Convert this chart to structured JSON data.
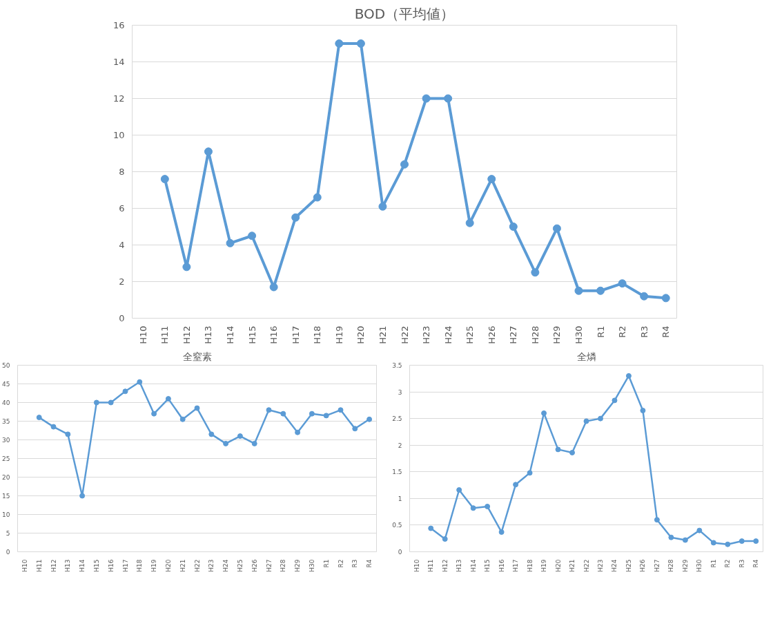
{
  "chart_data": [
    {
      "type": "line",
      "title": "BOD（平均値）",
      "categories": [
        "H10",
        "H11",
        "H12",
        "H13",
        "H14",
        "H15",
        "H16",
        "H17",
        "H18",
        "H19",
        "H20",
        "H21",
        "H22",
        "H23",
        "H24",
        "H25",
        "H26",
        "H27",
        "H28",
        "H29",
        "H30",
        "R1",
        "R2",
        "R3",
        "R4"
      ],
      "series": [
        {
          "color": "#5b9bd5",
          "values": [
            null,
            7.6,
            2.8,
            9.1,
            4.1,
            4.5,
            1.7,
            5.5,
            6.6,
            15,
            15,
            6.1,
            8.4,
            12,
            12,
            5.2,
            7.6,
            5.0,
            2.5,
            4.9,
            1.5,
            1.5,
            1.9,
            1.2,
            1.1
          ]
        }
      ],
      "ylim": [
        0,
        16
      ],
      "yticks": [
        0,
        2,
        4,
        6,
        8,
        10,
        12,
        14,
        16
      ],
      "grid": "y",
      "marker": "circle"
    },
    {
      "type": "line",
      "title": "全窒素",
      "categories": [
        "H10",
        "H11",
        "H12",
        "H13",
        "H14",
        "H15",
        "H16",
        "H17",
        "H18",
        "H19",
        "H20",
        "H21",
        "H22",
        "H23",
        "H24",
        "H25",
        "H26",
        "H27",
        "H28",
        "H29",
        "H30",
        "R1",
        "R2",
        "R3",
        "R4"
      ],
      "series": [
        {
          "color": "#5b9bd5",
          "values": [
            null,
            36,
            33.5,
            31.5,
            15,
            40,
            40,
            43,
            45.5,
            37,
            41,
            35.5,
            38.5,
            31.5,
            29,
            31,
            29,
            38,
            37,
            32,
            37,
            36.5,
            38,
            33,
            35.5
          ]
        }
      ],
      "ylim": [
        0,
        50
      ],
      "yticks": [
        0,
        5,
        10,
        15,
        20,
        25,
        30,
        35,
        40,
        45,
        50
      ],
      "grid": "y",
      "marker": "circle"
    },
    {
      "type": "line",
      "title": "全燐",
      "categories": [
        "H10",
        "H11",
        "H12",
        "H13",
        "H14",
        "H15",
        "H16",
        "H17",
        "H18",
        "H19",
        "H20",
        "H21",
        "H22",
        "H23",
        "H24",
        "H25",
        "H26",
        "H27",
        "H28",
        "H29",
        "H30",
        "R1",
        "R2",
        "R3",
        "R4"
      ],
      "series": [
        {
          "color": "#5b9bd5",
          "values": [
            null,
            0.44,
            0.24,
            1.16,
            0.82,
            0.85,
            0.37,
            1.26,
            1.48,
            2.6,
            1.92,
            1.86,
            2.45,
            2.5,
            2.84,
            3.3,
            2.65,
            0.6,
            0.27,
            0.22,
            0.4,
            0.17,
            0.14,
            0.2,
            0.2
          ]
        }
      ],
      "ylim": [
        0,
        3.5
      ],
      "yticks": [
        0,
        0.5,
        1,
        1.5,
        2,
        2.5,
        3,
        3.5
      ],
      "grid": "y",
      "marker": "circle"
    }
  ]
}
